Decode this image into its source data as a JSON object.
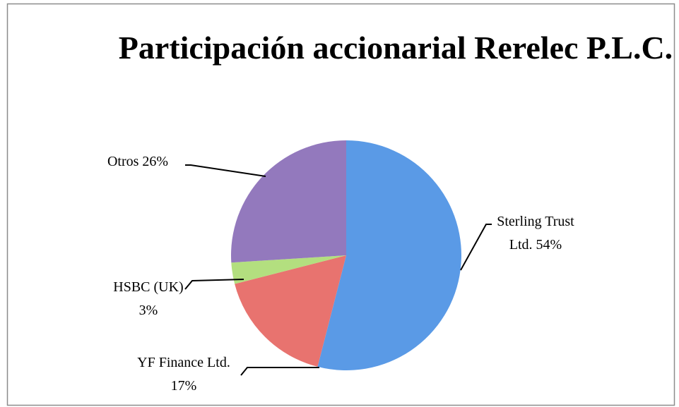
{
  "chart_data": {
    "type": "pie",
    "title": "Participación accionarial Rerelec P.L.C.",
    "categories": [
      "Sterling Trust Ltd.",
      "YF Finance Ltd.",
      "HSBC (UK)",
      "Otros"
    ],
    "values": [
      54,
      17,
      3,
      26
    ],
    "value_labels": [
      "54%",
      "17%",
      "3%",
      "26%"
    ],
    "colors": [
      "#5a9ae6",
      "#e8736f",
      "#b3df7f",
      "#9379bd"
    ]
  }
}
